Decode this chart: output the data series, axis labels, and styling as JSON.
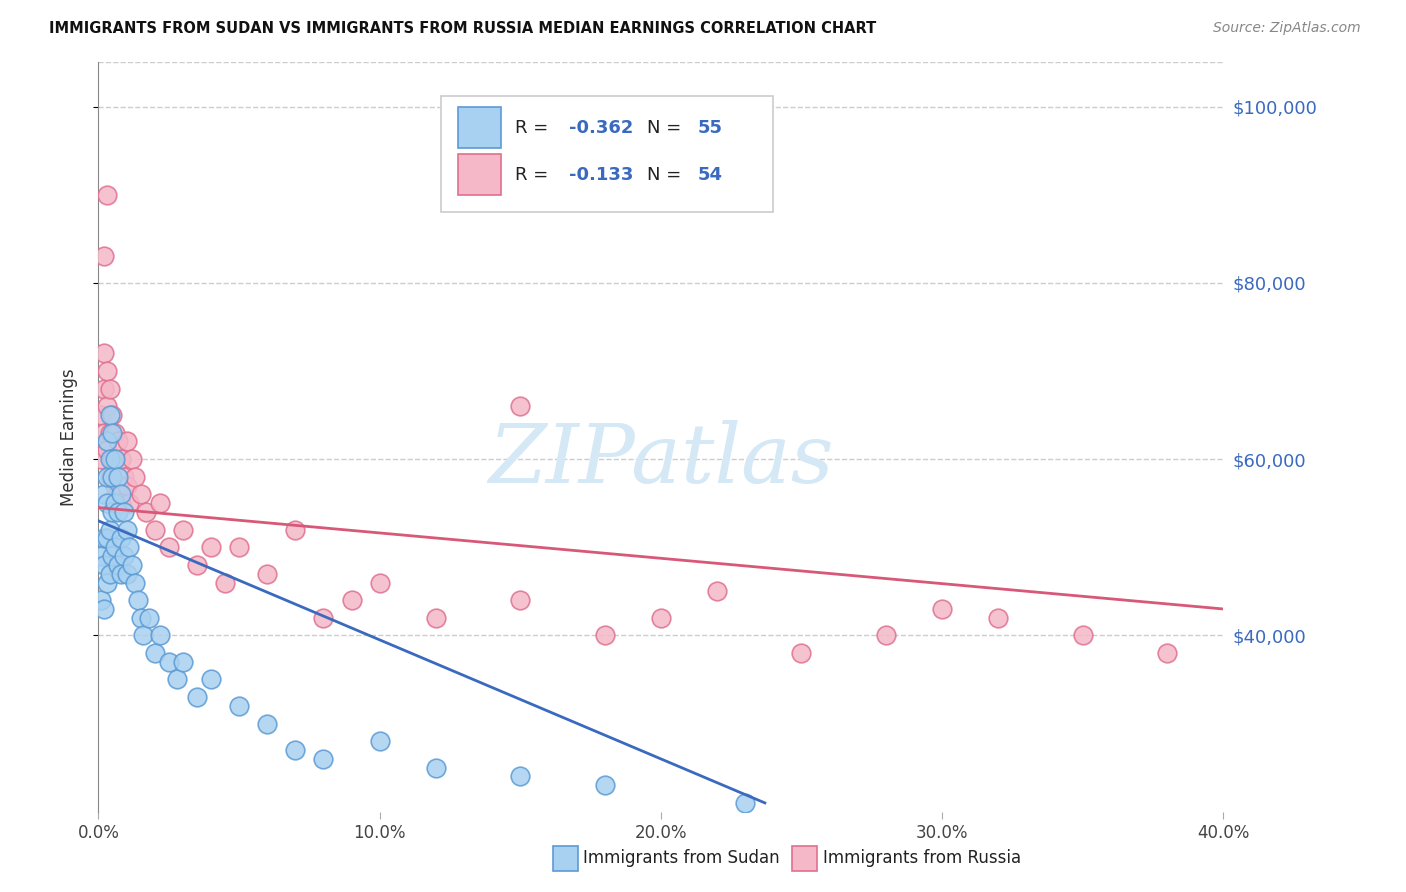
{
  "title": "IMMIGRANTS FROM SUDAN VS IMMIGRANTS FROM RUSSIA MEDIAN EARNINGS CORRELATION CHART",
  "source_text": "Source: ZipAtlas.com",
  "ylabel": "Median Earnings",
  "xlim": [
    0.0,
    0.4
  ],
  "ylim": [
    20000,
    105000
  ],
  "yticks": [
    40000,
    60000,
    80000,
    100000
  ],
  "ytick_labels": [
    "$40,000",
    "$60,000",
    "$80,000",
    "$100,000"
  ],
  "xticks": [
    0.0,
    0.1,
    0.2,
    0.3,
    0.4
  ],
  "xtick_labels": [
    "0.0%",
    "10.0%",
    "20.0%",
    "30.0%",
    "40.0%"
  ],
  "sudan_fill": "#a8d0f0",
  "sudan_edge": "#5b9bd5",
  "russia_fill": "#f4b8c8",
  "russia_edge": "#e07090",
  "sudan_line_color": "#3a6abf",
  "russia_line_color": "#d85878",
  "axis_label_color": "#3a6abf",
  "legend_label_color": "#3a6abf",
  "text_black": "#222222",
  "grid_color": "#cccccc",
  "legend_label_sudan": "Immigrants from Sudan",
  "legend_label_russia": "Immigrants from Russia",
  "watermark": "ZIPatlas",
  "watermark_color": "#d5e8f5",
  "sudan_x": [
    0.001,
    0.001,
    0.002,
    0.002,
    0.002,
    0.002,
    0.003,
    0.003,
    0.003,
    0.003,
    0.003,
    0.004,
    0.004,
    0.004,
    0.004,
    0.005,
    0.005,
    0.005,
    0.005,
    0.006,
    0.006,
    0.006,
    0.007,
    0.007,
    0.007,
    0.008,
    0.008,
    0.008,
    0.009,
    0.009,
    0.01,
    0.01,
    0.011,
    0.012,
    0.013,
    0.014,
    0.015,
    0.016,
    0.018,
    0.02,
    0.022,
    0.025,
    0.028,
    0.03,
    0.035,
    0.04,
    0.05,
    0.06,
    0.07,
    0.08,
    0.1,
    0.12,
    0.15,
    0.18,
    0.23
  ],
  "sudan_y": [
    49000,
    44000,
    56000,
    51000,
    48000,
    43000,
    62000,
    58000,
    55000,
    51000,
    46000,
    65000,
    60000,
    52000,
    47000,
    63000,
    58000,
    54000,
    49000,
    60000,
    55000,
    50000,
    58000,
    54000,
    48000,
    56000,
    51000,
    47000,
    54000,
    49000,
    52000,
    47000,
    50000,
    48000,
    46000,
    44000,
    42000,
    40000,
    42000,
    38000,
    40000,
    37000,
    35000,
    37000,
    33000,
    35000,
    32000,
    30000,
    27000,
    26000,
    28000,
    25000,
    24000,
    23000,
    21000
  ],
  "russia_x": [
    0.001,
    0.001,
    0.002,
    0.002,
    0.002,
    0.003,
    0.003,
    0.003,
    0.004,
    0.004,
    0.004,
    0.005,
    0.005,
    0.006,
    0.006,
    0.007,
    0.007,
    0.008,
    0.008,
    0.009,
    0.01,
    0.01,
    0.011,
    0.012,
    0.013,
    0.015,
    0.017,
    0.02,
    0.022,
    0.025,
    0.03,
    0.035,
    0.04,
    0.045,
    0.05,
    0.06,
    0.07,
    0.08,
    0.09,
    0.1,
    0.12,
    0.15,
    0.18,
    0.2,
    0.22,
    0.25,
    0.28,
    0.3,
    0.32,
    0.35,
    0.38,
    0.15,
    0.002,
    0.003
  ],
  "russia_y": [
    65000,
    60000,
    72000,
    68000,
    63000,
    70000,
    66000,
    61000,
    68000,
    63000,
    58000,
    65000,
    60000,
    63000,
    57000,
    62000,
    57000,
    60000,
    55000,
    58000,
    62000,
    57000,
    55000,
    60000,
    58000,
    56000,
    54000,
    52000,
    55000,
    50000,
    52000,
    48000,
    50000,
    46000,
    50000,
    47000,
    52000,
    42000,
    44000,
    46000,
    42000,
    44000,
    40000,
    42000,
    45000,
    38000,
    40000,
    43000,
    42000,
    40000,
    38000,
    66000,
    83000,
    90000
  ],
  "sudan_line_x0": 0.0,
  "sudan_line_y0": 53000,
  "sudan_line_x1": 0.237,
  "sudan_line_y1": 21000,
  "russia_line_x0": 0.0,
  "russia_line_y0": 54500,
  "russia_line_x1": 0.4,
  "russia_line_y1": 43000
}
